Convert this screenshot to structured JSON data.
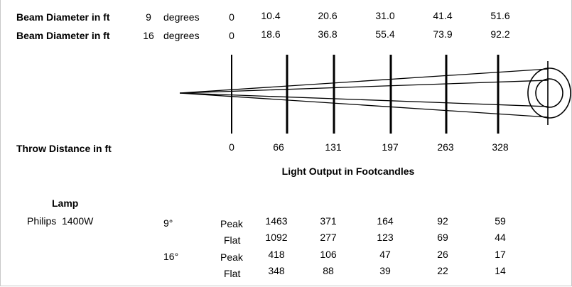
{
  "beam_rows": [
    {
      "label": "Beam Diameter in ft",
      "angle": "9",
      "unit": "degrees",
      "values": [
        "0",
        "10.4",
        "20.6",
        "31.0",
        "41.4",
        "51.6"
      ]
    },
    {
      "label": "Beam Diameter in ft",
      "angle": "16",
      "unit": "degrees",
      "values": [
        "0",
        "18.6",
        "36.8",
        "55.4",
        "73.9",
        "92.2"
      ]
    }
  ],
  "throw": {
    "label": "Throw Distance in ft",
    "values": [
      "0",
      "66",
      "131",
      "197",
      "263",
      "328"
    ]
  },
  "output_title": "Light Output in Footcandles",
  "lamp": {
    "heading": "Lamp",
    "name": "Philips  1400W"
  },
  "output_rows": [
    {
      "angle": "9°",
      "type": "Peak",
      "values": [
        "1463",
        "371",
        "164",
        "92",
        "59"
      ]
    },
    {
      "angle": "",
      "type": "Flat",
      "values": [
        "1092",
        "277",
        "123",
        "69",
        "44"
      ]
    },
    {
      "angle": "16°",
      "type": "Peak",
      "values": [
        "418",
        "106",
        "47",
        "26",
        "17"
      ]
    },
    {
      "angle": "",
      "type": "Flat",
      "values": [
        "348",
        "88",
        "39",
        "22",
        "14"
      ]
    }
  ]
}
